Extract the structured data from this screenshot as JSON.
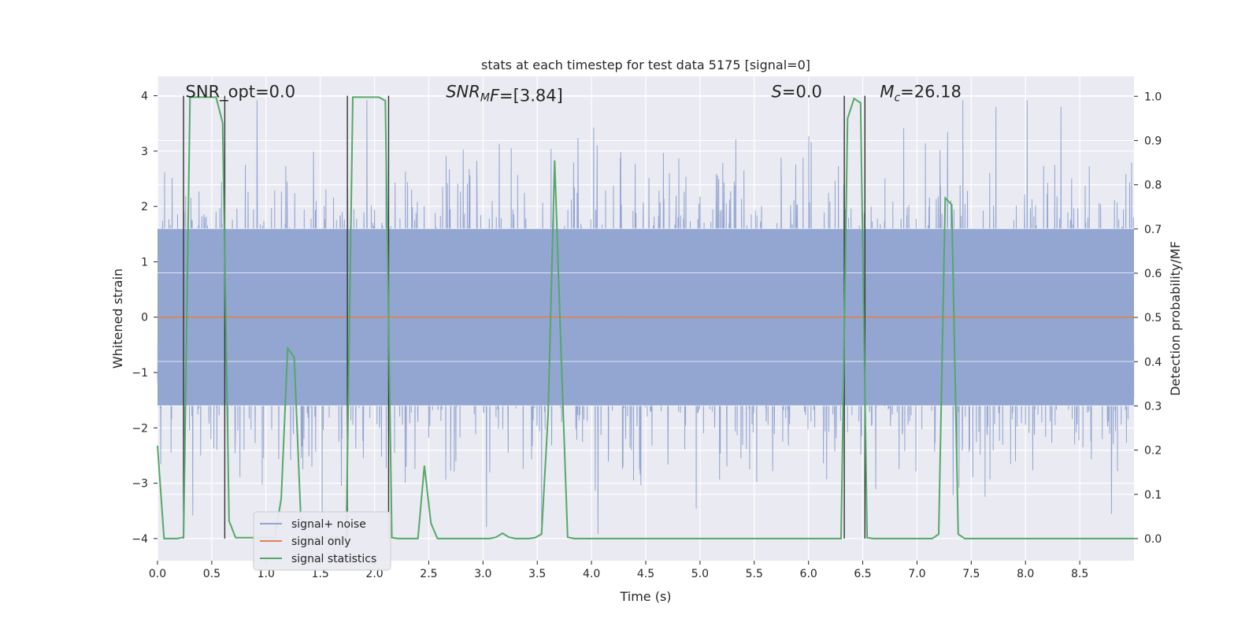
{
  "chart_data": {
    "type": "line",
    "title": "stats at each timestep for test data 5175 [signal=0]",
    "xlabel": "Time (s)",
    "ylabel": "Whitened strain",
    "y2label": "Detection probability/MF",
    "xlim": [
      0.0,
      9.0
    ],
    "ylim": [
      -4.4,
      4.35
    ],
    "y2lim": [
      -0.05,
      1.045
    ],
    "xticks": [
      0.0,
      0.5,
      1.0,
      1.5,
      2.0,
      2.5,
      3.0,
      3.5,
      4.0,
      4.5,
      5.0,
      5.5,
      6.0,
      6.5,
      7.0,
      7.5,
      8.0,
      8.5
    ],
    "xtick_labels": [
      "0.0",
      "0.5",
      "1.0",
      "1.5",
      "2.0",
      "2.5",
      "3.0",
      "3.5",
      "4.0",
      "4.5",
      "5.0",
      "5.5",
      "6.0",
      "6.5",
      "7.0",
      "7.5",
      "8.0",
      "8.5"
    ],
    "yticks": [
      -4,
      -3,
      -2,
      -1,
      0,
      1,
      2,
      3,
      4
    ],
    "ytick_labels": [
      "−4",
      "−3",
      "−2",
      "−1",
      "0",
      "1",
      "2",
      "3",
      "4"
    ],
    "y2ticks": [
      0.0,
      0.1,
      0.2,
      0.3,
      0.4,
      0.5,
      0.6,
      0.7,
      0.8,
      0.9,
      1.0
    ],
    "y2tick_labels": [
      "0.0",
      "0.1",
      "0.2",
      "0.3",
      "0.4",
      "0.5",
      "0.6",
      "0.7",
      "0.8",
      "0.9",
      "1.0"
    ],
    "annotations": [
      {
        "text": "SNR_opt=0.0",
        "x": 0.2,
        "y": 4.0,
        "italic": false
      },
      {
        "text": "SNR_MF=[3.84]",
        "x": 2.6,
        "y": 4.0,
        "italic": true,
        "pieces": [
          "SNR",
          "M",
          "F=[3.84]"
        ]
      },
      {
        "text": "S=0.0",
        "x": 5.6,
        "y": 4.0,
        "italic": true,
        "pieces": [
          "S",
          "=0.0"
        ]
      },
      {
        "text": "M_c=26.18",
        "x": 6.6,
        "y": 4.0,
        "italic": true,
        "pieces": [
          "M",
          "c",
          "=26.18"
        ]
      }
    ],
    "vlines": [
      0.24,
      0.62,
      1.75,
      2.13,
      6.33,
      6.52
    ],
    "vline_range": [
      -4.0,
      4.0
    ],
    "noise": {
      "amplitude_core": 1.6,
      "max_abs": 4.0,
      "fill_range": [
        -1.6,
        1.6
      ],
      "sample_step": 0.005
    },
    "series": [
      {
        "name": "signal+ noise",
        "color": "#92a6d1",
        "axis": "left",
        "kind": "noise"
      },
      {
        "name": "signal only",
        "color": "#dd8452",
        "axis": "left",
        "x": [
          0.0,
          9.0
        ],
        "y": [
          0.0,
          0.0
        ]
      },
      {
        "name": "signal statistics",
        "color": "#55a868",
        "axis": "right",
        "x": [
          0.0,
          0.06,
          0.12,
          0.18,
          0.24,
          0.3,
          0.36,
          0.42,
          0.48,
          0.54,
          0.6,
          0.66,
          0.72,
          0.78,
          0.84,
          0.9,
          0.96,
          1.02,
          1.08,
          1.14,
          1.2,
          1.26,
          1.32,
          1.38,
          1.44,
          1.5,
          1.56,
          1.62,
          1.68,
          1.74,
          1.8,
          1.86,
          1.92,
          1.98,
          2.04,
          2.1,
          2.16,
          2.22,
          2.28,
          2.34,
          2.4,
          2.46,
          2.52,
          2.58,
          2.64,
          2.7,
          2.76,
          2.82,
          2.88,
          2.94,
          3.0,
          3.06,
          3.12,
          3.18,
          3.24,
          3.3,
          3.36,
          3.42,
          3.48,
          3.54,
          3.6,
          3.66,
          3.72,
          3.78,
          3.84,
          3.9,
          3.96,
          4.02,
          6.24,
          6.3,
          6.36,
          6.42,
          6.48,
          6.54,
          6.6,
          6.66,
          6.72,
          6.78,
          6.84,
          6.9,
          6.96,
          7.02,
          7.08,
          7.14,
          7.2,
          7.26,
          7.32,
          7.38,
          7.44,
          7.5,
          7.56,
          7.62,
          7.68,
          9.0
        ],
        "y": [
          0.21,
          0.0,
          0.0,
          0.0,
          0.003,
          0.998,
          0.998,
          0.998,
          0.998,
          0.998,
          0.94,
          0.04,
          0.002,
          0.002,
          0.002,
          0.002,
          0.002,
          0.002,
          0.002,
          0.09,
          0.43,
          0.41,
          0.05,
          0.002,
          0.002,
          0.002,
          0.002,
          0.002,
          0.002,
          0.002,
          0.998,
          0.998,
          0.998,
          0.998,
          0.998,
          0.99,
          0.002,
          0.0,
          0.0,
          0.0,
          0.0,
          0.165,
          0.035,
          0.0,
          0.0,
          0.0,
          0.0,
          0.0,
          0.0,
          0.0,
          0.0,
          0.0,
          0.003,
          0.012,
          0.003,
          0.0,
          0.0,
          0.0,
          0.002,
          0.01,
          0.28,
          0.855,
          0.42,
          0.003,
          0.0,
          0.0,
          0.0,
          0.0,
          0.0,
          0.0,
          0.95,
          0.995,
          0.985,
          0.002,
          0.0,
          0.0,
          0.0,
          0.0,
          0.0,
          0.0,
          0.0,
          0.0,
          0.0,
          0.0,
          0.01,
          0.77,
          0.755,
          0.01,
          0.0,
          0.0,
          0.0,
          0.0,
          0.0,
          0.0
        ]
      }
    ],
    "legend": {
      "location": "lower-left",
      "entries": [
        "signal+ noise",
        "signal only",
        "signal statistics"
      ]
    },
    "grid": true
  },
  "style": {
    "plot_bg": "#eaeaf2",
    "grid_color": "#ffffff",
    "vline_color": "#333333",
    "text_color": "#262626"
  }
}
